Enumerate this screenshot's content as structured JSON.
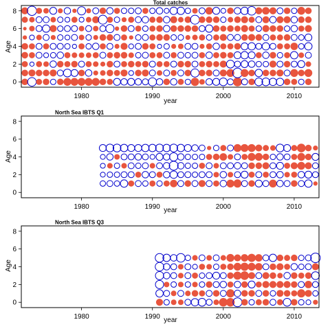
{
  "colors": {
    "negative": "#e8553e",
    "positive": "#0000cc",
    "frame": "#000000"
  },
  "chart_data": [
    {
      "type": "scatter",
      "subtype": "bubble",
      "title": "Total catches",
      "xlabel": "year",
      "ylabel": "Age",
      "xlim": [
        1971.5,
        2013.5
      ],
      "ylim": [
        -0.6,
        8.6
      ],
      "xticks": [
        1980,
        1990,
        2000,
        2010
      ],
      "yticks": [
        0,
        2,
        4,
        6,
        8
      ],
      "x": {
        "start": 1972,
        "end": 2012
      },
      "ages": [
        0,
        1,
        2,
        3,
        4,
        5,
        6,
        7,
        8
      ],
      "residuals": {
        "8": [
          -0.8,
          1.4,
          -0.6,
          -0.5,
          0.8,
          -0.4,
          0.7,
          -0.3,
          1.1,
          -0.4,
          0.6,
          -0.7,
          0.7,
          -0.6,
          0.5,
          0.5,
          0.6,
          -0.6,
          0.5,
          0.7,
          0.4,
          0.9,
          0.9,
          0.5,
          -0.5,
          0.6,
          -0.9,
          0.8,
          0.4,
          -0.7,
          0.7,
          0.9,
          1.2,
          -0.8,
          -0.9,
          -0.8,
          0.6,
          -0.7,
          0.5,
          -1.0,
          -0.7
        ],
        "7": [
          -0.6,
          -0.5,
          0.6,
          0.6,
          -0.5,
          0.5,
          0.4,
          -0.6,
          0.4,
          -0.5,
          -0.8,
          1.3,
          -0.6,
          0.5,
          -0.4,
          -0.6,
          0.6,
          0.7,
          -0.6,
          -0.7,
          0.7,
          -0.8,
          -0.5,
          -0.7,
          1.3,
          -0.7,
          -0.7,
          -0.7,
          0.5,
          -0.5,
          -0.7,
          -0.8,
          -0.6,
          0.6,
          -0.8,
          0.7,
          -0.8,
          -0.8,
          0.7,
          -0.7,
          -0.7
        ],
        "6": [
          -0.2,
          -0.5,
          0.6,
          0.9,
          -0.8,
          0.5,
          0.6,
          0.6,
          -0.5,
          0.6,
          -0.5,
          0.6,
          1.1,
          -0.3,
          -0.7,
          0.6,
          -0.6,
          0.5,
          -0.6,
          -0.7,
          0.7,
          -0.7,
          -0.7,
          -0.7,
          -0.7,
          0.6,
          0.9,
          -0.7,
          -0.6,
          -0.7,
          -0.6,
          -0.8,
          -0.6,
          0.5,
          -0.8,
          -0.7,
          -0.7,
          0.5,
          0.7,
          -0.6,
          -0.8
        ],
        "5": [
          -0.3,
          0.4,
          -0.5,
          0.6,
          -0.4,
          0.5,
          0.4,
          0.6,
          -0.5,
          0.5,
          -0.4,
          -0.7,
          -0.7,
          0.6,
          -0.6,
          -0.3,
          0.5,
          0.6,
          -0.6,
          -0.7,
          -0.7,
          0.5,
          0.5,
          -0.4,
          -0.5,
          -0.6,
          0.5,
          -0.6,
          -0.8,
          0.6,
          0.6,
          -0.7,
          -0.8,
          -0.7,
          0.6,
          -0.6,
          -0.6,
          -0.7,
          0.6,
          0.5,
          0.8
        ],
        "4": [
          -0.7,
          -0.6,
          0.6,
          -0.6,
          0.6,
          0.6,
          0.5,
          0.3,
          -0.6,
          0.5,
          0.7,
          -0.6,
          0.6,
          -0.4,
          -0.8,
          0.4,
          0.6,
          -0.7,
          -0.6,
          0.3,
          0.5,
          -0.4,
          -0.5,
          0.6,
          0.6,
          -0.4,
          -0.6,
          0.7,
          -0.6,
          -0.6,
          -0.7,
          0.8,
          0.9,
          0.6,
          0.9,
          0.6,
          -0.6,
          -0.6,
          -0.9,
          0.5,
          0.9
        ],
        "3": [
          -0.7,
          -0.6,
          0.6,
          0.4,
          0.5,
          0.7,
          -0.6,
          -0.5,
          -0.5,
          -0.5,
          -0.6,
          0.6,
          -0.6,
          -0.7,
          -0.7,
          -0.5,
          0.5,
          0.6,
          -0.6,
          -0.6,
          0.6,
          -0.6,
          0.6,
          0.5,
          0.6,
          -0.6,
          0.7,
          -0.6,
          -0.7,
          -0.6,
          0.8,
          0.9,
          0.8,
          -0.6,
          0.7,
          -0.7,
          0.5,
          -0.6,
          0.9,
          -0.5,
          0.6
        ],
        "2": [
          -0.6,
          0.3,
          -0.6,
          -0.5,
          0.7,
          -0.7,
          -0.6,
          -0.7,
          0.6,
          -0.6,
          -0.5,
          -0.4,
          -0.7,
          0.6,
          -0.6,
          -0.7,
          -0.6,
          -0.7,
          0.6,
          -0.6,
          -0.6,
          0.6,
          -0.7,
          -0.7,
          0.6,
          -0.6,
          -0.7,
          -0.6,
          -0.8,
          1.0,
          0.6,
          0.8,
          0.7,
          0.5,
          0.5,
          -0.8,
          0.6,
          -0.7,
          0.6,
          0.8,
          -0.5
        ],
        "1": [
          -0.7,
          -0.8,
          -0.7,
          -0.7,
          -0.8,
          0.6,
          1.0,
          0.8,
          -0.7,
          0.7,
          -0.4,
          -0.5,
          -0.7,
          -0.6,
          -0.8,
          0.4,
          -0.7,
          -0.8,
          0.6,
          -0.5,
          0.6,
          -0.6,
          0.6,
          -0.7,
          1.1,
          -0.7,
          -0.7,
          0.6,
          -0.8,
          -1.0,
          1.5,
          -1.0,
          -0.7,
          0.9,
          -0.7,
          -0.7,
          -0.8,
          0.6,
          -1.0,
          -0.7,
          -1.0
        ],
        "0": [
          -0.7,
          1.2,
          -0.6,
          -0.7,
          0.5,
          -0.7,
          -1.0,
          -1.0,
          -1.0,
          -1.0,
          -1.0,
          -0.7,
          -0.6,
          0.8,
          0.7,
          0.8,
          0.7,
          0.6,
          1.1,
          0.7,
          -0.7,
          0.7,
          -0.6,
          0.5,
          -1.1,
          -0.5,
          0.7,
          0.8,
          1.0,
          0.6,
          -1.3,
          0.6,
          -0.7,
          1.0,
          1.0,
          0.9,
          0.9,
          -0.7,
          -0.6,
          0.5,
          -0.7
        ]
      }
    },
    {
      "type": "scatter",
      "subtype": "bubble",
      "title": "North Sea IBTS Q1",
      "xlabel": "year",
      "ylabel": "Age",
      "xlim": [
        1971.5,
        2013.5
      ],
      "ylim": [
        -0.6,
        8.6
      ],
      "xticks": [
        1980,
        1990,
        2000,
        2010
      ],
      "yticks": [
        0,
        2,
        4,
        6,
        8
      ],
      "x": {
        "start": 1983,
        "end": 2013
      },
      "ages": [
        1,
        2,
        3,
        4,
        5
      ],
      "residuals": {
        "5": [
          0.8,
          1.0,
          1.0,
          0.9,
          0.8,
          0.8,
          0.9,
          0.9,
          1.0,
          0.9,
          1.0,
          0.9,
          0.8,
          0.7,
          0.6,
          -0.3,
          0.5,
          -0.6,
          0.6,
          -1.0,
          -1.0,
          -1.0,
          -0.8,
          -0.6,
          -0.5,
          1.0,
          0.8,
          -0.6,
          -1.2,
          -0.7,
          -0.4
        ],
        "4": [
          0.4,
          0.7,
          -0.5,
          0.6,
          0.6,
          0.7,
          0.6,
          0.4,
          0.8,
          0.7,
          1.1,
          0.7,
          0.5,
          0.5,
          0.5,
          -0.6,
          -0.7,
          -0.9,
          -0.5,
          0.6,
          -0.6,
          -1.0,
          -1.0,
          -0.7,
          0.5,
          0.7,
          0.6,
          -0.6,
          -1.0,
          -0.7,
          0.8
        ],
        "3": [
          0.4,
          -0.5,
          0.5,
          -0.5,
          0.6,
          0.5,
          0.6,
          -0.5,
          0.6,
          0.7,
          1.3,
          0.7,
          0.5,
          0.5,
          -0.6,
          0.6,
          -0.5,
          0.6,
          0.6,
          0.7,
          0.6,
          -0.7,
          -0.7,
          -0.8,
          0.6,
          0.8,
          -0.6,
          -0.8,
          -1.0,
          -0.8,
          0.6
        ],
        "2": [
          0.4,
          0.5,
          0.5,
          0.6,
          0.6,
          -0.6,
          0.7,
          0.6,
          -0.6,
          0.7,
          0.9,
          0.6,
          0.6,
          0.5,
          0.6,
          0.6,
          -0.5,
          0.7,
          -0.5,
          0.6,
          0.8,
          -0.6,
          0.6,
          -0.6,
          0.6,
          0.7,
          -0.5,
          -0.6,
          0.7,
          0.8,
          0.6
        ],
        "1": [
          0.5,
          0.6,
          0.5,
          0.9,
          -0.6,
          0.6,
          0.5,
          -0.6,
          0.5,
          -0.6,
          -0.9,
          0.6,
          -0.7,
          0.6,
          -0.8,
          0.6,
          -0.6,
          0.7,
          -1.0,
          -1.1,
          0.6,
          -0.7,
          0.8,
          0.6,
          -1.0,
          0.7,
          0.6,
          -0.7,
          0.6,
          0.9,
          -0.3
        ]
      }
    },
    {
      "type": "scatter",
      "subtype": "bubble",
      "title": "North Sea IBTS Q3",
      "xlabel": "year",
      "ylabel": "Age",
      "xlim": [
        1971.5,
        2013.5
      ],
      "ylim": [
        -0.6,
        8.6
      ],
      "xticks": [
        1980,
        1990,
        2000,
        2010
      ],
      "yticks": [
        0,
        2,
        4,
        6,
        8
      ],
      "x": {
        "start": 1991,
        "end": 2013
      },
      "ages": [
        0,
        1,
        2,
        3,
        4,
        5
      ],
      "residuals": {
        "5": [
          1.2,
          0.9,
          0.7,
          1.2,
          0.5,
          -0.5,
          0.6,
          -0.5,
          0.6,
          -0.5,
          -1.0,
          -0.8,
          -0.9,
          -1.1,
          -0.9,
          0.6,
          0.9,
          -0.7,
          -0.6,
          -0.7,
          0.5,
          0.6,
          1.5
        ],
        "4": [
          1.2,
          0.7,
          0.6,
          -0.5,
          0.6,
          0.4,
          -0.6,
          -0.5,
          0.5,
          -0.6,
          -0.7,
          -1.0,
          -1.1,
          -1.0,
          -0.9,
          0.6,
          -0.7,
          -0.8,
          -0.6,
          0.7,
          0.5,
          0.6,
          -0.8
        ],
        "3": [
          1.1,
          0.7,
          0.6,
          -0.5,
          0.6,
          -0.6,
          0.5,
          0.6,
          0.8,
          0.6,
          -0.7,
          -1.1,
          -1.2,
          -0.8,
          0.6,
          -0.8,
          -0.7,
          -0.5,
          0.7,
          -0.7,
          -0.6,
          -0.7,
          1.0
        ],
        "2": [
          1.1,
          -0.5,
          0.5,
          -0.5,
          0.5,
          -0.5,
          0.5,
          -0.7,
          0.6,
          0.7,
          -0.6,
          0.7,
          -0.7,
          0.8,
          -0.6,
          -0.8,
          -0.8,
          -0.8,
          -0.8,
          -0.7,
          0.6,
          -0.9,
          0.6
        ],
        "1": [
          0.9,
          0.6,
          -0.5,
          0.6,
          -0.5,
          -0.7,
          -0.6,
          0.6,
          -0.7,
          0.6,
          -1.1,
          0.7,
          -0.7,
          -0.7,
          0.6,
          -0.7,
          0.5,
          -0.8,
          -0.7,
          -0.6,
          -1.1,
          -0.8,
          0.5
        ],
        "0": [
          -0.8,
          0.5,
          -0.5,
          -0.5,
          0.6,
          0.9,
          1.0,
          0.6,
          -0.5,
          -1.2,
          -1.2,
          1.3,
          -0.7,
          0.5,
          -0.6,
          -0.7,
          0.6,
          -0.6,
          1.0,
          -0.7,
          0.5,
          0.4,
          -0.4
        ]
      }
    }
  ]
}
